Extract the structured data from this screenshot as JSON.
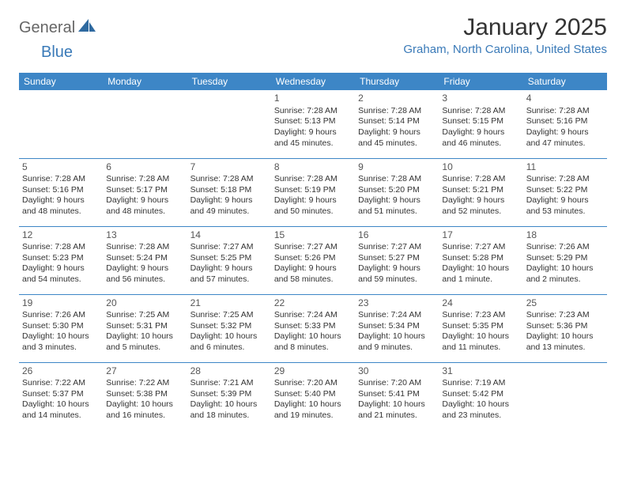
{
  "logo": {
    "part1": "General",
    "part2": "Blue"
  },
  "title": "January 2025",
  "location": "Graham, North Carolina, United States",
  "colors": {
    "header_bg": "#3d86c6",
    "header_text": "#ffffff",
    "accent": "#3a7ab8",
    "body_text": "#333333"
  },
  "day_headers": [
    "Sunday",
    "Monday",
    "Tuesday",
    "Wednesday",
    "Thursday",
    "Friday",
    "Saturday"
  ],
  "weeks": [
    [
      null,
      null,
      null,
      {
        "n": "1",
        "sr": "7:28 AM",
        "ss": "5:13 PM",
        "d1": "Daylight: 9 hours",
        "d2": "and 45 minutes."
      },
      {
        "n": "2",
        "sr": "7:28 AM",
        "ss": "5:14 PM",
        "d1": "Daylight: 9 hours",
        "d2": "and 45 minutes."
      },
      {
        "n": "3",
        "sr": "7:28 AM",
        "ss": "5:15 PM",
        "d1": "Daylight: 9 hours",
        "d2": "and 46 minutes."
      },
      {
        "n": "4",
        "sr": "7:28 AM",
        "ss": "5:16 PM",
        "d1": "Daylight: 9 hours",
        "d2": "and 47 minutes."
      }
    ],
    [
      {
        "n": "5",
        "sr": "7:28 AM",
        "ss": "5:16 PM",
        "d1": "Daylight: 9 hours",
        "d2": "and 48 minutes."
      },
      {
        "n": "6",
        "sr": "7:28 AM",
        "ss": "5:17 PM",
        "d1": "Daylight: 9 hours",
        "d2": "and 48 minutes."
      },
      {
        "n": "7",
        "sr": "7:28 AM",
        "ss": "5:18 PM",
        "d1": "Daylight: 9 hours",
        "d2": "and 49 minutes."
      },
      {
        "n": "8",
        "sr": "7:28 AM",
        "ss": "5:19 PM",
        "d1": "Daylight: 9 hours",
        "d2": "and 50 minutes."
      },
      {
        "n": "9",
        "sr": "7:28 AM",
        "ss": "5:20 PM",
        "d1": "Daylight: 9 hours",
        "d2": "and 51 minutes."
      },
      {
        "n": "10",
        "sr": "7:28 AM",
        "ss": "5:21 PM",
        "d1": "Daylight: 9 hours",
        "d2": "and 52 minutes."
      },
      {
        "n": "11",
        "sr": "7:28 AM",
        "ss": "5:22 PM",
        "d1": "Daylight: 9 hours",
        "d2": "and 53 minutes."
      }
    ],
    [
      {
        "n": "12",
        "sr": "7:28 AM",
        "ss": "5:23 PM",
        "d1": "Daylight: 9 hours",
        "d2": "and 54 minutes."
      },
      {
        "n": "13",
        "sr": "7:28 AM",
        "ss": "5:24 PM",
        "d1": "Daylight: 9 hours",
        "d2": "and 56 minutes."
      },
      {
        "n": "14",
        "sr": "7:27 AM",
        "ss": "5:25 PM",
        "d1": "Daylight: 9 hours",
        "d2": "and 57 minutes."
      },
      {
        "n": "15",
        "sr": "7:27 AM",
        "ss": "5:26 PM",
        "d1": "Daylight: 9 hours",
        "d2": "and 58 minutes."
      },
      {
        "n": "16",
        "sr": "7:27 AM",
        "ss": "5:27 PM",
        "d1": "Daylight: 9 hours",
        "d2": "and 59 minutes."
      },
      {
        "n": "17",
        "sr": "7:27 AM",
        "ss": "5:28 PM",
        "d1": "Daylight: 10 hours",
        "d2": "and 1 minute."
      },
      {
        "n": "18",
        "sr": "7:26 AM",
        "ss": "5:29 PM",
        "d1": "Daylight: 10 hours",
        "d2": "and 2 minutes."
      }
    ],
    [
      {
        "n": "19",
        "sr": "7:26 AM",
        "ss": "5:30 PM",
        "d1": "Daylight: 10 hours",
        "d2": "and 3 minutes."
      },
      {
        "n": "20",
        "sr": "7:25 AM",
        "ss": "5:31 PM",
        "d1": "Daylight: 10 hours",
        "d2": "and 5 minutes."
      },
      {
        "n": "21",
        "sr": "7:25 AM",
        "ss": "5:32 PM",
        "d1": "Daylight: 10 hours",
        "d2": "and 6 minutes."
      },
      {
        "n": "22",
        "sr": "7:24 AM",
        "ss": "5:33 PM",
        "d1": "Daylight: 10 hours",
        "d2": "and 8 minutes."
      },
      {
        "n": "23",
        "sr": "7:24 AM",
        "ss": "5:34 PM",
        "d1": "Daylight: 10 hours",
        "d2": "and 9 minutes."
      },
      {
        "n": "24",
        "sr": "7:23 AM",
        "ss": "5:35 PM",
        "d1": "Daylight: 10 hours",
        "d2": "and 11 minutes."
      },
      {
        "n": "25",
        "sr": "7:23 AM",
        "ss": "5:36 PM",
        "d1": "Daylight: 10 hours",
        "d2": "and 13 minutes."
      }
    ],
    [
      {
        "n": "26",
        "sr": "7:22 AM",
        "ss": "5:37 PM",
        "d1": "Daylight: 10 hours",
        "d2": "and 14 minutes."
      },
      {
        "n": "27",
        "sr": "7:22 AM",
        "ss": "5:38 PM",
        "d1": "Daylight: 10 hours",
        "d2": "and 16 minutes."
      },
      {
        "n": "28",
        "sr": "7:21 AM",
        "ss": "5:39 PM",
        "d1": "Daylight: 10 hours",
        "d2": "and 18 minutes."
      },
      {
        "n": "29",
        "sr": "7:20 AM",
        "ss": "5:40 PM",
        "d1": "Daylight: 10 hours",
        "d2": "and 19 minutes."
      },
      {
        "n": "30",
        "sr": "7:20 AM",
        "ss": "5:41 PM",
        "d1": "Daylight: 10 hours",
        "d2": "and 21 minutes."
      },
      {
        "n": "31",
        "sr": "7:19 AM",
        "ss": "5:42 PM",
        "d1": "Daylight: 10 hours",
        "d2": "and 23 minutes."
      },
      null
    ]
  ],
  "labels": {
    "sunrise": "Sunrise: ",
    "sunset": "Sunset: "
  }
}
